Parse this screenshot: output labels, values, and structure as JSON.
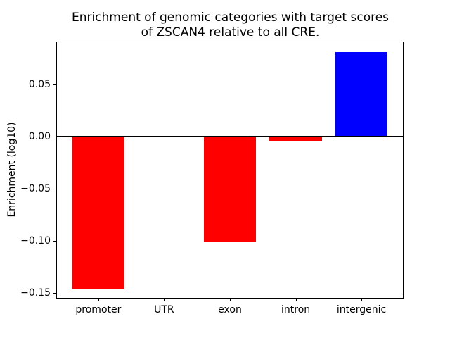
{
  "figure": {
    "title": "Enrichment of genomic categories with target scores\nof ZSCAN4 relative to all CRE.",
    "ylabel": "Enrichment (log10)"
  },
  "chart_data": {
    "type": "bar",
    "title": "Enrichment of genomic categories with target scores of ZSCAN4 relative to all CRE.",
    "xlabel": "",
    "ylabel": "Enrichment (log10)",
    "categories": [
      "promoter",
      "UTR",
      "exon",
      "intron",
      "intergenic"
    ],
    "values": [
      -0.146,
      0.0,
      -0.101,
      -0.004,
      0.081
    ],
    "bar_colors": [
      "#ff0000",
      "#ff0000",
      "#ff0000",
      "#ff0000",
      "#0000ff"
    ],
    "bar_width": 0.8,
    "ylim": [
      -0.1554,
      0.0912
    ],
    "xlim": [
      -0.64,
      4.64
    ],
    "yticks": [
      0.05,
      0.0,
      -0.05,
      -0.1,
      -0.15
    ],
    "ytick_labels": [
      "0.05",
      "0.00",
      "−0.05",
      "−0.10",
      "−0.15"
    ],
    "grid": false,
    "legend": null,
    "zero_line": true,
    "axis_color": "#000000",
    "background_color": "#ffffff"
  }
}
